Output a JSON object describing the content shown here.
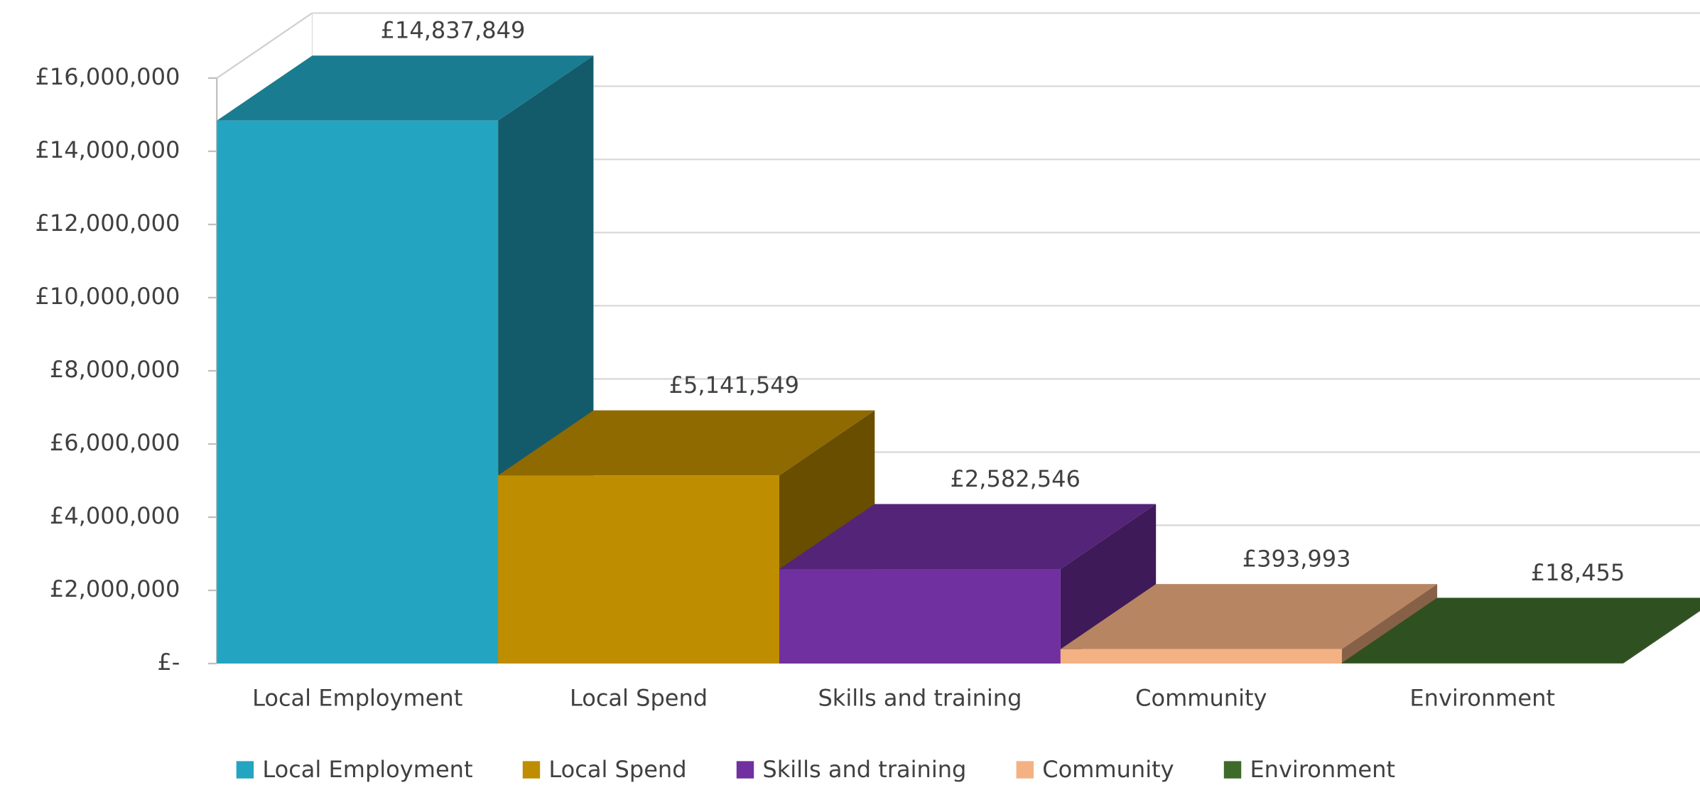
{
  "chart_data": {
    "type": "bar3d",
    "categories": [
      "Local Employment",
      "Local Spend",
      "Skills and training",
      "Community",
      "Environment"
    ],
    "values": [
      14837849,
      5141549,
      2582546,
      393993,
      18455
    ],
    "value_labels": [
      "£14,837,849",
      "£5,141,549",
      "£2,582,546",
      "£393,993",
      "£18,455"
    ],
    "colors": [
      "#23a5c1",
      "#bf8d00",
      "#7030a0",
      "#f4b183",
      "#3e6b2a"
    ],
    "ylim": [
      0,
      16000000
    ],
    "yticks": [
      {
        "value": 0,
        "label": "£-"
      },
      {
        "value": 2000000,
        "label": "£2,000,000"
      },
      {
        "value": 4000000,
        "label": "£4,000,000"
      },
      {
        "value": 6000000,
        "label": "£6,000,000"
      },
      {
        "value": 8000000,
        "label": "£8,000,000"
      },
      {
        "value": 10000000,
        "label": "£10,000,000"
      },
      {
        "value": 12000000,
        "label": "£12,000,000"
      },
      {
        "value": 14000000,
        "label": "£14,000,000"
      },
      {
        "value": 16000000,
        "label": "£16,000,000"
      }
    ],
    "grid": true,
    "legend": "bottom"
  }
}
